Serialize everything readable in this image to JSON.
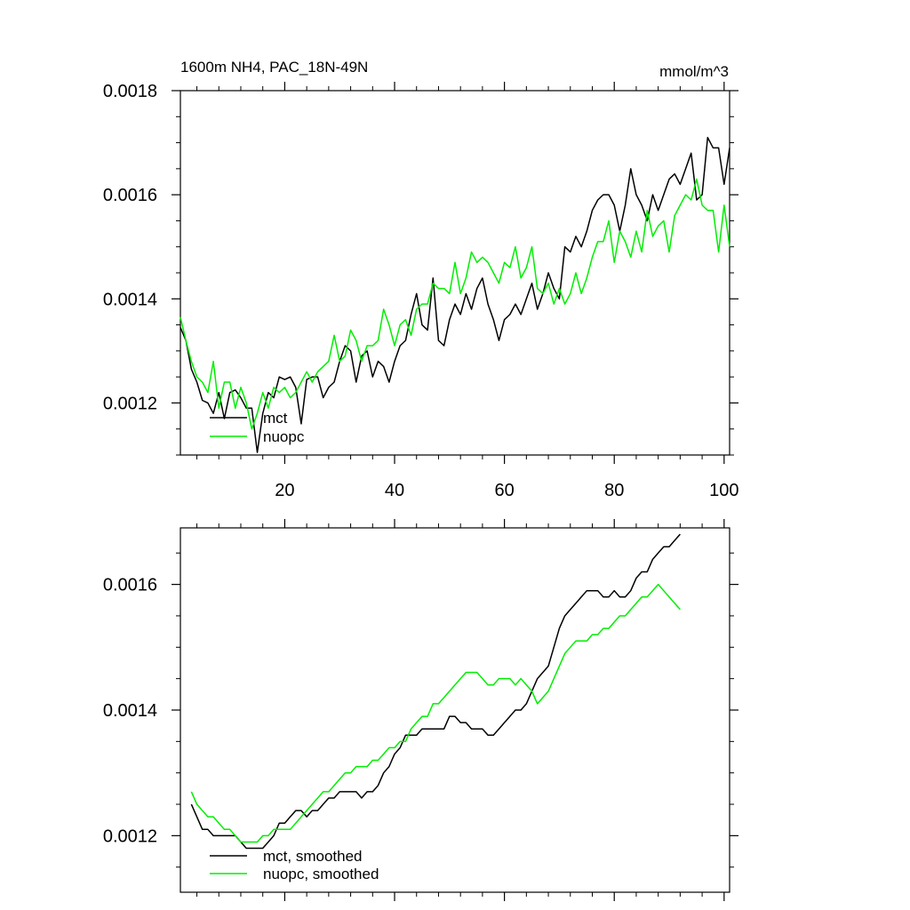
{
  "chart_data": [
    {
      "type": "line",
      "title": "1600m NH4, PAC_18N-49N",
      "units_label": "mmol/m^3",
      "xlim": [
        1,
        101
      ],
      "ylim": [
        0.0011,
        0.0018
      ],
      "xticks": [
        20,
        40,
        60,
        80,
        100
      ],
      "xtick_labels": [
        "20",
        "40",
        "60",
        "80",
        "100"
      ],
      "yticks": [
        0.0012,
        0.0014,
        0.0016,
        0.0018
      ],
      "ytick_labels": [
        "0.0012",
        "0.0014",
        "0.0016",
        "0.0018"
      ],
      "legend_position": "bottom-left",
      "series": [
        {
          "name": "mct",
          "color": "#000000",
          "values": [
            0.001345,
            0.00132,
            0.001265,
            0.00124,
            0.001205,
            0.0012,
            0.00118,
            0.00122,
            0.00117,
            0.00122,
            0.001225,
            0.00121,
            0.00119,
            0.00119,
            0.001105,
            0.00118,
            0.00122,
            0.00121,
            0.00125,
            0.001245,
            0.00125,
            0.00123,
            0.00116,
            0.001245,
            0.00125,
            0.00125,
            0.00121,
            0.00123,
            0.00124,
            0.00128,
            0.00131,
            0.0013,
            0.00124,
            0.00129,
            0.0013,
            0.00125,
            0.00128,
            0.00127,
            0.00124,
            0.00128,
            0.00131,
            0.00132,
            0.00137,
            0.00141,
            0.00135,
            0.00134,
            0.00144,
            0.00132,
            0.00131,
            0.00136,
            0.00139,
            0.00137,
            0.00141,
            0.00138,
            0.00142,
            0.00144,
            0.00139,
            0.00136,
            0.00132,
            0.00136,
            0.00137,
            0.00139,
            0.00137,
            0.0014,
            0.00143,
            0.00138,
            0.00141,
            0.00145,
            0.00142,
            0.0014,
            0.0015,
            0.00149,
            0.00152,
            0.0015,
            0.00153,
            0.00157,
            0.00159,
            0.0016,
            0.0016,
            0.00158,
            0.00153,
            0.00158,
            0.00165,
            0.0016,
            0.00158,
            0.00155,
            0.0016,
            0.00157,
            0.0016,
            0.00163,
            0.00164,
            0.00162,
            0.00165,
            0.00168,
            0.00159,
            0.0016,
            0.00171,
            0.00169,
            0.00169,
            0.00162,
            0.00169
          ]
        },
        {
          "name": "nuopc",
          "color": "#00ee00",
          "values": [
            0.001365,
            0.00132,
            0.00128,
            0.00125,
            0.00124,
            0.00122,
            0.00128,
            0.00119,
            0.00124,
            0.00124,
            0.00119,
            0.00123,
            0.0012,
            0.00115,
            0.00118,
            0.00122,
            0.00119,
            0.00123,
            0.00122,
            0.00123,
            0.00121,
            0.00122,
            0.00124,
            0.00126,
            0.00124,
            0.00126,
            0.00127,
            0.00128,
            0.00133,
            0.00128,
            0.00129,
            0.00134,
            0.00132,
            0.00128,
            0.00131,
            0.00131,
            0.00132,
            0.00138,
            0.00135,
            0.00131,
            0.00135,
            0.00136,
            0.00133,
            0.00138,
            0.00139,
            0.00139,
            0.00143,
            0.00142,
            0.00142,
            0.00141,
            0.00147,
            0.00141,
            0.00144,
            0.00149,
            0.00147,
            0.00148,
            0.00147,
            0.00145,
            0.00143,
            0.00147,
            0.00146,
            0.0015,
            0.00144,
            0.00146,
            0.0015,
            0.00142,
            0.00141,
            0.00143,
            0.00139,
            0.00142,
            0.00139,
            0.00141,
            0.00145,
            0.00141,
            0.00144,
            0.00148,
            0.00151,
            0.00151,
            0.00155,
            0.00147,
            0.00153,
            0.00151,
            0.00148,
            0.00153,
            0.00149,
            0.00157,
            0.00152,
            0.00154,
            0.00155,
            0.00149,
            0.00156,
            0.00158,
            0.0016,
            0.00159,
            0.00163,
            0.00158,
            0.00157,
            0.00157,
            0.00149,
            0.00158,
            0.0015
          ]
        }
      ]
    },
    {
      "type": "line",
      "xlim": [
        1,
        101
      ],
      "ylim": [
        0.00111,
        0.00169
      ],
      "yticks": [
        0.0012,
        0.0014,
        0.0016
      ],
      "ytick_labels": [
        "0.0012",
        "0.0014",
        "0.0016"
      ],
      "legend_position": "bottom-left",
      "series": [
        {
          "name": "mct, smoothed",
          "color": "#000000",
          "x_start": 3,
          "values": [
            0.00125,
            0.00123,
            0.00121,
            0.00121,
            0.0012,
            0.0012,
            0.0012,
            0.0012,
            0.0012,
            0.00119,
            0.00118,
            0.00118,
            0.00118,
            0.00118,
            0.00119,
            0.0012,
            0.00122,
            0.00122,
            0.00123,
            0.00124,
            0.00124,
            0.00123,
            0.00124,
            0.00124,
            0.00125,
            0.00126,
            0.00126,
            0.00127,
            0.00127,
            0.00127,
            0.00127,
            0.00126,
            0.00127,
            0.00127,
            0.00128,
            0.0013,
            0.00131,
            0.00133,
            0.00134,
            0.00136,
            0.00136,
            0.00136,
            0.00137,
            0.00137,
            0.00137,
            0.00137,
            0.00137,
            0.00139,
            0.00139,
            0.00138,
            0.00138,
            0.00137,
            0.00137,
            0.00137,
            0.00136,
            0.00136,
            0.00137,
            0.00138,
            0.00139,
            0.0014,
            0.0014,
            0.00141,
            0.00143,
            0.00145,
            0.00146,
            0.00147,
            0.0015,
            0.00153,
            0.00155,
            0.00156,
            0.00157,
            0.00158,
            0.00159,
            0.00159,
            0.00159,
            0.00158,
            0.00158,
            0.00159,
            0.00158,
            0.00158,
            0.00159,
            0.00161,
            0.00162,
            0.00162,
            0.00164,
            0.00165,
            0.00166,
            0.00166,
            0.00167,
            0.00168
          ]
        },
        {
          "name": "nuopc, smoothed",
          "color": "#00ee00",
          "x_start": 3,
          "values": [
            0.00127,
            0.00125,
            0.00124,
            0.00123,
            0.00123,
            0.00122,
            0.00121,
            0.00121,
            0.0012,
            0.00119,
            0.00119,
            0.00119,
            0.00119,
            0.0012,
            0.0012,
            0.00121,
            0.00121,
            0.00121,
            0.00121,
            0.00122,
            0.00123,
            0.00124,
            0.00125,
            0.00126,
            0.00127,
            0.00127,
            0.00128,
            0.00129,
            0.0013,
            0.0013,
            0.00131,
            0.00131,
            0.00131,
            0.00132,
            0.00132,
            0.00133,
            0.00134,
            0.00134,
            0.00135,
            0.00135,
            0.00137,
            0.00138,
            0.00139,
            0.00139,
            0.00141,
            0.00141,
            0.00142,
            0.00143,
            0.00144,
            0.00145,
            0.00146,
            0.00146,
            0.00146,
            0.00145,
            0.00144,
            0.00144,
            0.00145,
            0.00145,
            0.00145,
            0.00144,
            0.00145,
            0.00144,
            0.00143,
            0.00141,
            0.00142,
            0.00143,
            0.00145,
            0.00147,
            0.00149,
            0.0015,
            0.00151,
            0.00151,
            0.00151,
            0.00152,
            0.00152,
            0.00153,
            0.00153,
            0.00154,
            0.00155,
            0.00155,
            0.00156,
            0.00157,
            0.00158,
            0.00158,
            0.00159,
            0.0016,
            0.00159,
            0.00158,
            0.00157,
            0.00156
          ]
        }
      ]
    }
  ]
}
